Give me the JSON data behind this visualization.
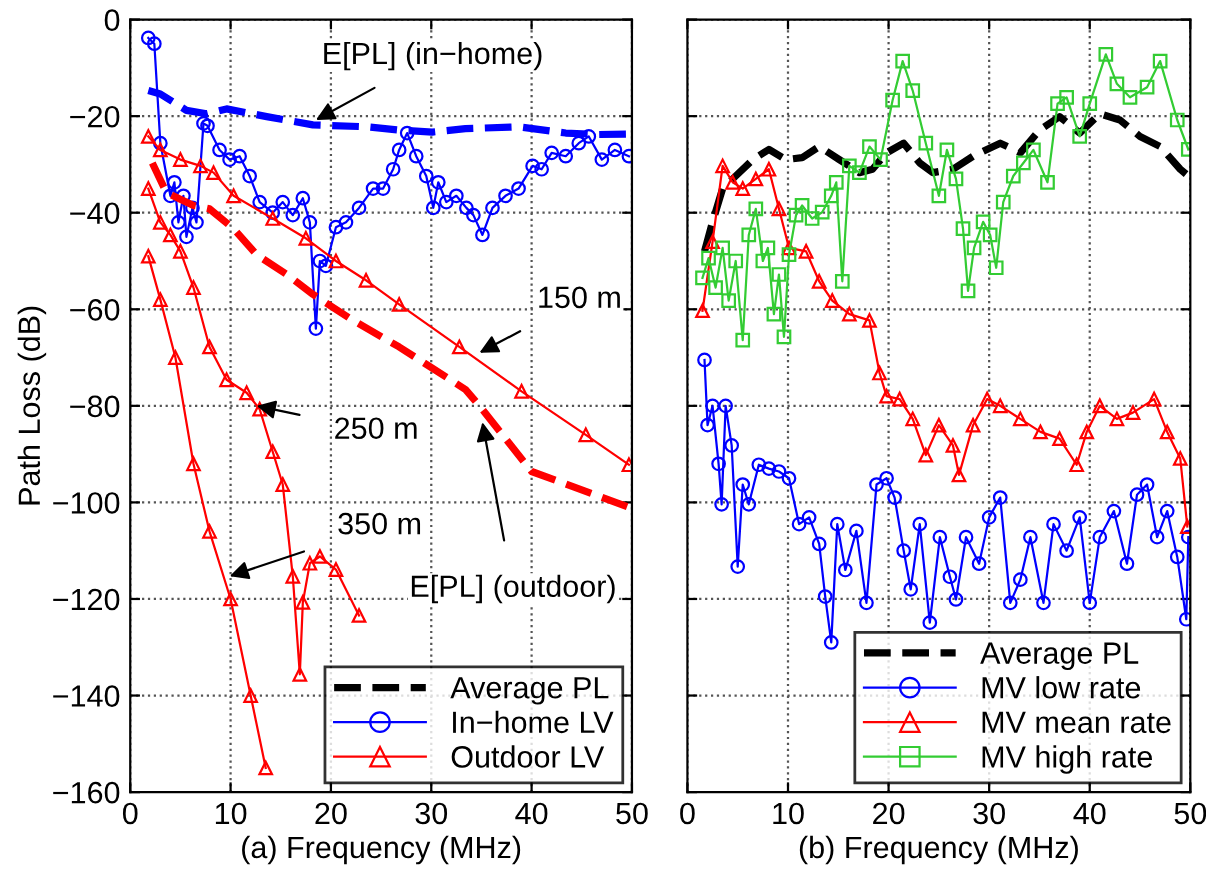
{
  "chart_data": [
    {
      "type": "line",
      "xlabel": "(a) Frequency (MHz)",
      "ylabel": "Path Loss (dB)",
      "xlim": [
        0,
        50
      ],
      "ylim": [
        -160,
        0
      ],
      "xticks": [
        0,
        10,
        20,
        30,
        40,
        50
      ],
      "yticks": [
        -160,
        -140,
        -120,
        -100,
        -80,
        -60,
        -40,
        -20,
        0
      ],
      "grid": true,
      "legend": "bottom right",
      "annotations": [
        {
          "text": "E[PL] (in−home)",
          "x": 18.5,
          "y": -20.8
        },
        {
          "text": "150 m",
          "x": 34.8,
          "y": -69
        },
        {
          "text": "250 m",
          "x": 12.6,
          "y": -80
        },
        {
          "text": "350 m",
          "x": 9.9,
          "y": -115.3
        },
        {
          "text": "E[PL] (outdoor)",
          "x": 35.1,
          "y": -83.4
        }
      ],
      "series": [
        {
          "name": "Average PL",
          "color": "#000000",
          "line_style": "dashed",
          "marker": "none"
        },
        {
          "name": "In−home LV",
          "color": "#0000ff",
          "line_style": "solid",
          "marker": "circle",
          "x": [
            1.8,
            2.4,
            3,
            4,
            4.4,
            4.8,
            5.3,
            5.6,
            6.2,
            6.6,
            7.3,
            7.7,
            8.9,
            9.9,
            10.9,
            11.9,
            12.9,
            14.2,
            15.2,
            16.2,
            17.2,
            17.9,
            18.5,
            18.9,
            19.5,
            20.5,
            21.5,
            22.8,
            24.2,
            25.2,
            26.2,
            26.8,
            27.6,
            28.5,
            29.5,
            30.2,
            30.7,
            31.5,
            32.5,
            33.5,
            34.2,
            35.1,
            36.1,
            37.4,
            38.7,
            40.1,
            41,
            42,
            43.4,
            44.7,
            45.7,
            47,
            48.3,
            49.7
          ],
          "values": [
            -3.8,
            -5,
            -25.6,
            -36.5,
            -33.7,
            -42,
            -36.5,
            -45,
            -39,
            -42,
            -21.5,
            -22,
            -27,
            -29,
            -28.3,
            -32.4,
            -37.8,
            -40,
            -37.8,
            -40.5,
            -37,
            -42,
            -64,
            -50,
            -51,
            -43,
            -42,
            -39,
            -35,
            -35,
            -31,
            -27,
            -23.5,
            -28.3,
            -32.4,
            -39,
            -33.7,
            -37.8,
            -36.5,
            -39,
            -40.5,
            -44.6,
            -39,
            -36.5,
            -35,
            -30.3,
            -31,
            -27.6,
            -28.3,
            -25.6,
            -24.2,
            -29,
            -27,
            -28.3
          ]
        },
        {
          "color": "#0000ff",
          "line_style": "dashed",
          "marker": "none",
          "x": [
            1.8,
            3,
            5.6,
            7.6,
            9.6,
            13.6,
            18.2,
            23.5,
            26.8,
            30.1,
            33.4,
            38.7,
            43.4,
            46.7,
            49.7
          ],
          "values": [
            -14.7,
            -15.4,
            -18.8,
            -19.5,
            -18.5,
            -20.1,
            -21.8,
            -22.2,
            -22.9,
            -23.3,
            -22.6,
            -22.2,
            -23.5,
            -23.8,
            -23.7
          ]
        },
        {
          "name": "Outdoor LV",
          "color": "#ff0000",
          "line_style": "solid",
          "marker": "triangle",
          "x": [
            1.8,
            3,
            5,
            7,
            8.3,
            10.3,
            14.2,
            17.5,
            20.5,
            23.5,
            26.8,
            32.8,
            39,
            45.4,
            49.7
          ],
          "values": [
            -24.2,
            -27,
            -29,
            -30.3,
            -31.7,
            -36.5,
            -41.2,
            -45.3,
            -50,
            -54,
            -59,
            -67.8,
            -77,
            -86,
            -92.2
          ]
        },
        {
          "color": "#ff0000",
          "line_style": "dashed",
          "marker": "none",
          "x": [
            2.2,
            3.6,
            6.3,
            7.9,
            10.3,
            12.6,
            15.6,
            18.2,
            22.2,
            26.8,
            33.4,
            34.8,
            40,
            49.7
          ],
          "values": [
            -29.7,
            -35.8,
            -38.5,
            -39.2,
            -43.3,
            -48.7,
            -52.8,
            -56.9,
            -62.3,
            -67.8,
            -76.6,
            -80,
            -93.6,
            -101
          ]
        },
        {
          "color": "#ff0000",
          "line_style": "solid",
          "marker": "triangle",
          "x": [
            1.8,
            3,
            4,
            5,
            6.3,
            7.9,
            9.6,
            11.6,
            12.9,
            14.2,
            15.2,
            16.2,
            16.9,
            17.2,
            17.9,
            18.9,
            20.5,
            22.8
          ],
          "values": [
            -35,
            -42,
            -44.6,
            -48,
            -55.5,
            -67.8,
            -74.6,
            -77.3,
            -80.7,
            -89.5,
            -96.3,
            -115.3,
            -135.6,
            -120.7,
            -112.6,
            -111.2,
            -113.9,
            -123.4
          ]
        },
        {
          "color": "#ff0000",
          "line_style": "solid",
          "marker": "triangle",
          "x": [
            1.8,
            3,
            4.5,
            6.3,
            7.9,
            10,
            12,
            13.5
          ],
          "values": [
            -49,
            -58,
            -70,
            -92,
            -106,
            -120,
            -140,
            -155
          ]
        }
      ]
    },
    {
      "type": "line",
      "xlabel": "(b) Frequency (MHz)",
      "xlim": [
        0,
        50
      ],
      "ylim": [
        -160,
        0
      ],
      "xticks": [
        0,
        10,
        20,
        30,
        40,
        50
      ],
      "yticks": [
        -160,
        -140,
        -120,
        -100,
        -80,
        -60,
        -40,
        -20,
        0
      ],
      "tick_labels": "x",
      "grid": true,
      "legend": "bottom right",
      "series": [
        {
          "name": "Average PL",
          "color": "#000000",
          "line_style": "dashed",
          "marker": "none",
          "x": [
            1.7,
            2.5,
            3.5,
            4.8,
            6.5,
            8.1,
            9.8,
            11.4,
            13.1,
            15.1,
            17.1,
            18.4,
            19.8,
            21.5,
            23.1,
            24.4,
            26.4,
            28.4,
            31.1,
            33.1,
            35,
            37,
            39,
            41,
            43,
            45,
            47,
            49,
            49.8
          ],
          "values": [
            -48,
            -41.9,
            -35,
            -32.4,
            -29,
            -26.9,
            -29,
            -28.6,
            -26.3,
            -29,
            -31.7,
            -31,
            -27.6,
            -25.6,
            -29.7,
            -31.7,
            -31,
            -28.3,
            -25.6,
            -27.6,
            -22.9,
            -20.1,
            -23.5,
            -19.5,
            -20.8,
            -24.2,
            -26.3,
            -31,
            -32.4
          ]
        },
        {
          "name": "MV low rate",
          "color": "#0000ff",
          "line_style": "solid",
          "marker": "circle",
          "x": [
            1.7,
            2,
            2.5,
            3.1,
            3.4,
            3.8,
            4.4,
            5,
            5.5,
            6.1,
            7.1,
            8.1,
            9.1,
            10.1,
            11.1,
            12.1,
            13.1,
            13.7,
            14.3,
            14.9,
            15.7,
            16.8,
            17.8,
            18.8,
            19.8,
            20.6,
            21.5,
            22.2,
            23.1,
            24.1,
            25.1,
            26.1,
            26.7,
            27.7,
            29,
            30,
            31.1,
            32.1,
            33.1,
            34.1,
            35.4,
            36.4,
            37.7,
            39,
            40,
            41,
            42.4,
            43.7,
            44.7,
            45.7,
            46.7,
            47.7,
            48.7,
            49.6,
            49.8
          ],
          "values": [
            -70.5,
            -84,
            -80,
            -92,
            -100.4,
            -80,
            -88.2,
            -113.3,
            -96.3,
            -100.4,
            -92.2,
            -93,
            -93.6,
            -95,
            -104.5,
            -103.1,
            -108.6,
            -119.5,
            -129,
            -104.5,
            -114,
            -105.9,
            -120.8,
            -96.3,
            -95,
            -99,
            -110,
            -118,
            -104.5,
            -124.9,
            -107.2,
            -115.4,
            -120.1,
            -107.2,
            -112.7,
            -103.1,
            -99,
            -120.8,
            -116,
            -107.2,
            -120.8,
            -104.5,
            -110,
            -103.1,
            -120.8,
            -107.2,
            -101.8,
            -112.7,
            -98.4,
            -96.3,
            -107.2,
            -101.8,
            -111.3,
            -124.2,
            -107.2
          ]
        },
        {
          "name": "MV mean rate",
          "color": "#ff0000",
          "line_style": "solid",
          "marker": "triangle",
          "x": [
            1.5,
            2.5,
            3.5,
            4.5,
            5.5,
            6.8,
            8.1,
            9.1,
            10.1,
            11.8,
            13.1,
            14.4,
            16.1,
            18.1,
            19.1,
            19.8,
            21.1,
            22.4,
            23.7,
            25,
            26.4,
            27,
            28.4,
            29.8,
            31.1,
            33.1,
            35.1,
            37,
            38.7,
            39.7,
            41,
            42.7,
            44.3,
            46.4,
            47.7,
            49,
            49.7
          ],
          "values": [
            -60.3,
            -46,
            -30.3,
            -33.7,
            -35,
            -33,
            -31,
            -39.2,
            -47.3,
            -48,
            -54.2,
            -58.2,
            -61,
            -62.3,
            -73.2,
            -78,
            -78.6,
            -82.7,
            -90.2,
            -84,
            -88.2,
            -94.3,
            -84,
            -78.6,
            -80,
            -82.7,
            -85.4,
            -86.8,
            -92.2,
            -85.4,
            -80,
            -82.7,
            -81.4,
            -78.6,
            -85.4,
            -90.9,
            -105
          ]
        },
        {
          "name": "MV high rate",
          "color": "#33cc33",
          "line_style": "solid",
          "marker": "square",
          "x": [
            1.5,
            2.1,
            2.8,
            3.5,
            4.1,
            4.8,
            5.5,
            6.1,
            6.8,
            7.5,
            8,
            8.6,
            9.1,
            9.6,
            10.1,
            10.8,
            11.4,
            12.4,
            13.4,
            14.3,
            14.8,
            15.4,
            16.1,
            17.1,
            18.1,
            19.2,
            20.4,
            21.4,
            22.4,
            23.7,
            25,
            25.8,
            26.7,
            27.4,
            27.9,
            28.5,
            29.4,
            30.1,
            30.7,
            31.4,
            32.4,
            33.4,
            34.4,
            35.8,
            36.8,
            37.7,
            39,
            40,
            41.6,
            42.7,
            44,
            45.7,
            47,
            48.7,
            49.8
          ],
          "values": [
            -53.5,
            -49.4,
            -55.5,
            -47.3,
            -58.2,
            -50,
            -66.4,
            -44.6,
            -39.2,
            -50,
            -47.3,
            -61,
            -52.8,
            -65.7,
            -48.7,
            -40.5,
            -38.5,
            -41.2,
            -39.9,
            -36.5,
            -33.7,
            -54.2,
            -30.3,
            -31.7,
            -26.3,
            -29,
            -16.7,
            -8.6,
            -14.7,
            -25.6,
            -36.5,
            -27,
            -33,
            -43.3,
            -56.2,
            -47.3,
            -41.9,
            -44.6,
            -51.4,
            -37.8,
            -32.4,
            -29.7,
            -27,
            -33.7,
            -17.4,
            -16.1,
            -24.2,
            -17.4,
            -7.2,
            -13.3,
            -16.1,
            -14,
            -8.6,
            -20.8,
            -26.9
          ]
        }
      ]
    }
  ]
}
